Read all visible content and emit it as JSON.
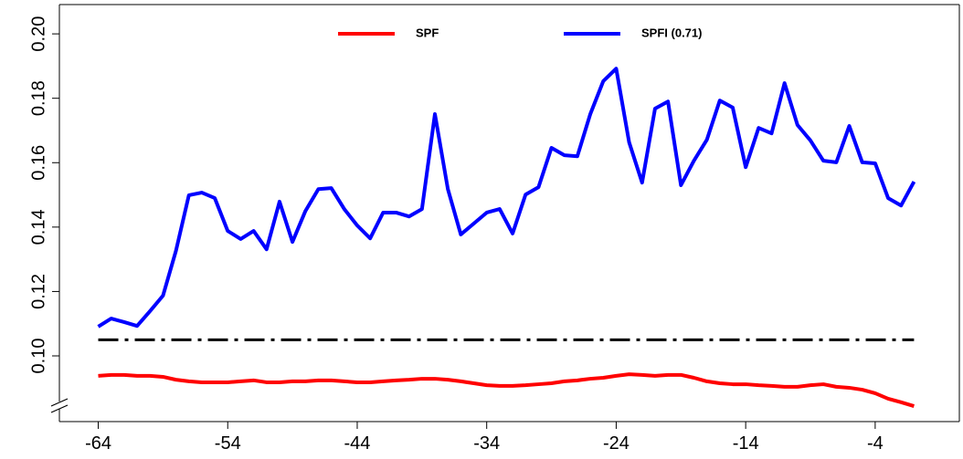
{
  "chart_data": {
    "type": "line",
    "x": [
      -64,
      -63,
      -62,
      -61,
      -60,
      -59,
      -58,
      -57,
      -56,
      -55,
      -54,
      -53,
      -52,
      -51,
      -50,
      -49,
      -48,
      -47,
      -46,
      -45,
      -44,
      -43,
      -42,
      -41,
      -40,
      -39,
      -38,
      -37,
      -36,
      -35,
      -34,
      -33,
      -32,
      -31,
      -30,
      -29,
      -28,
      -27,
      -26,
      -25,
      -24,
      -23,
      -22,
      -21,
      -20,
      -19,
      -18,
      -17,
      -16,
      -15,
      -14,
      -13,
      -12,
      -11,
      -10,
      -9,
      -8,
      -7,
      -6,
      -5,
      -4,
      -3,
      -2,
      -1
    ],
    "series": [
      {
        "name": "SPF",
        "color": "#ff0000",
        "values": [
          0.0938,
          0.0941,
          0.0941,
          0.0938,
          0.0938,
          0.0935,
          0.0926,
          0.0921,
          0.0918,
          0.0918,
          0.0918,
          0.0921,
          0.0924,
          0.0918,
          0.0918,
          0.0921,
          0.0921,
          0.0924,
          0.0924,
          0.0921,
          0.0918,
          0.0918,
          0.0921,
          0.0924,
          0.0926,
          0.0929,
          0.0929,
          0.0926,
          0.0921,
          0.0915,
          0.0909,
          0.0907,
          0.0907,
          0.0909,
          0.0912,
          0.0915,
          0.0921,
          0.0924,
          0.0929,
          0.0932,
          0.0938,
          0.0943,
          0.0941,
          0.0938,
          0.0941,
          0.0941,
          0.0932,
          0.0921,
          0.0915,
          0.0912,
          0.0912,
          0.0909,
          0.0907,
          0.0904,
          0.0904,
          0.0909,
          0.0912,
          0.0904,
          0.0901,
          0.0895,
          0.0884,
          0.0867,
          0.0856,
          0.0844
        ]
      },
      {
        "name": "SPFI (0.71)",
        "color": "#0000ff",
        "values": [
          0.1091,
          0.1116,
          0.1105,
          0.1093,
          0.1139,
          0.1187,
          0.1326,
          0.1499,
          0.1507,
          0.149,
          0.1388,
          0.1363,
          0.1388,
          0.1331,
          0.1479,
          0.1354,
          0.145,
          0.1518,
          0.1521,
          0.1456,
          0.1405,
          0.1365,
          0.1445,
          0.1445,
          0.1433,
          0.1456,
          0.1751,
          0.1518,
          0.1377,
          0.1411,
          0.1445,
          0.1456,
          0.138,
          0.1501,
          0.1524,
          0.1646,
          0.1623,
          0.162,
          0.1751,
          0.1853,
          0.1892,
          0.1663,
          0.1538,
          0.1768,
          0.179,
          0.153,
          0.1606,
          0.1671,
          0.1793,
          0.1771,
          0.1586,
          0.1708,
          0.1691,
          0.1847,
          0.1717,
          0.1669,
          0.1606,
          0.1601,
          0.1714,
          0.1601,
          0.1598,
          0.149,
          0.1467,
          0.1541
        ]
      }
    ],
    "reference_line": 0.105,
    "xlim": [
      -67,
      2.5
    ],
    "xticks": [
      -64,
      -54,
      -44,
      -34,
      -24,
      -14,
      -4
    ],
    "ylim": [
      0.0796,
      0.2091
    ],
    "yticks": [
      {
        "value": 0.1,
        "label": "0.10"
      },
      {
        "value": 0.12,
        "label": "0.12"
      },
      {
        "value": 0.14,
        "label": "0.14"
      },
      {
        "value": 0.16,
        "label": "0.16"
      },
      {
        "value": 0.18,
        "label": "0.18"
      },
      {
        "value": 0.2,
        "label": "0.20"
      }
    ],
    "legend": "top"
  }
}
